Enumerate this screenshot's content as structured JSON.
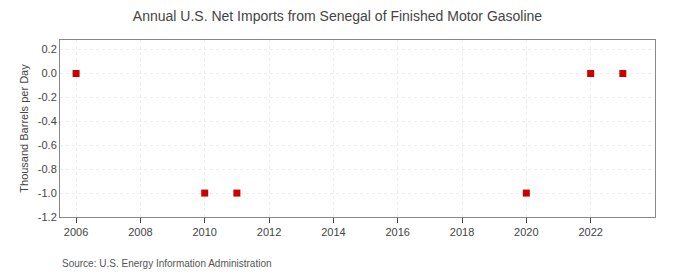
{
  "chart_data": {
    "type": "scatter",
    "title": "Annual U.S. Net Imports from Senegal of Finished Motor Gasoline",
    "y_label": "Thousand Barrels per Day",
    "annotations": [
      "Source: U.S. Energy Information Administration"
    ],
    "x": [
      2006,
      2010,
      2011,
      2020,
      2022,
      2023
    ],
    "values": [
      0,
      -1,
      -1,
      -1,
      0,
      0
    ],
    "color": "#cc0000",
    "marker": "square",
    "xlim": [
      2005.5,
      2024.0
    ],
    "xticks": [
      2006,
      2008,
      2010,
      2012,
      2014,
      2016,
      2018,
      2020,
      2022
    ],
    "ylim": [
      -1.2,
      0.28
    ],
    "yticks": [
      -1.2,
      {
        "value": -1.0,
        "label": "-1.0"
      },
      -0.8,
      -0.6,
      -0.4,
      -0.2,
      {
        "value": 0.0,
        "label": "0.0"
      },
      0.2
    ],
    "grid": true
  }
}
